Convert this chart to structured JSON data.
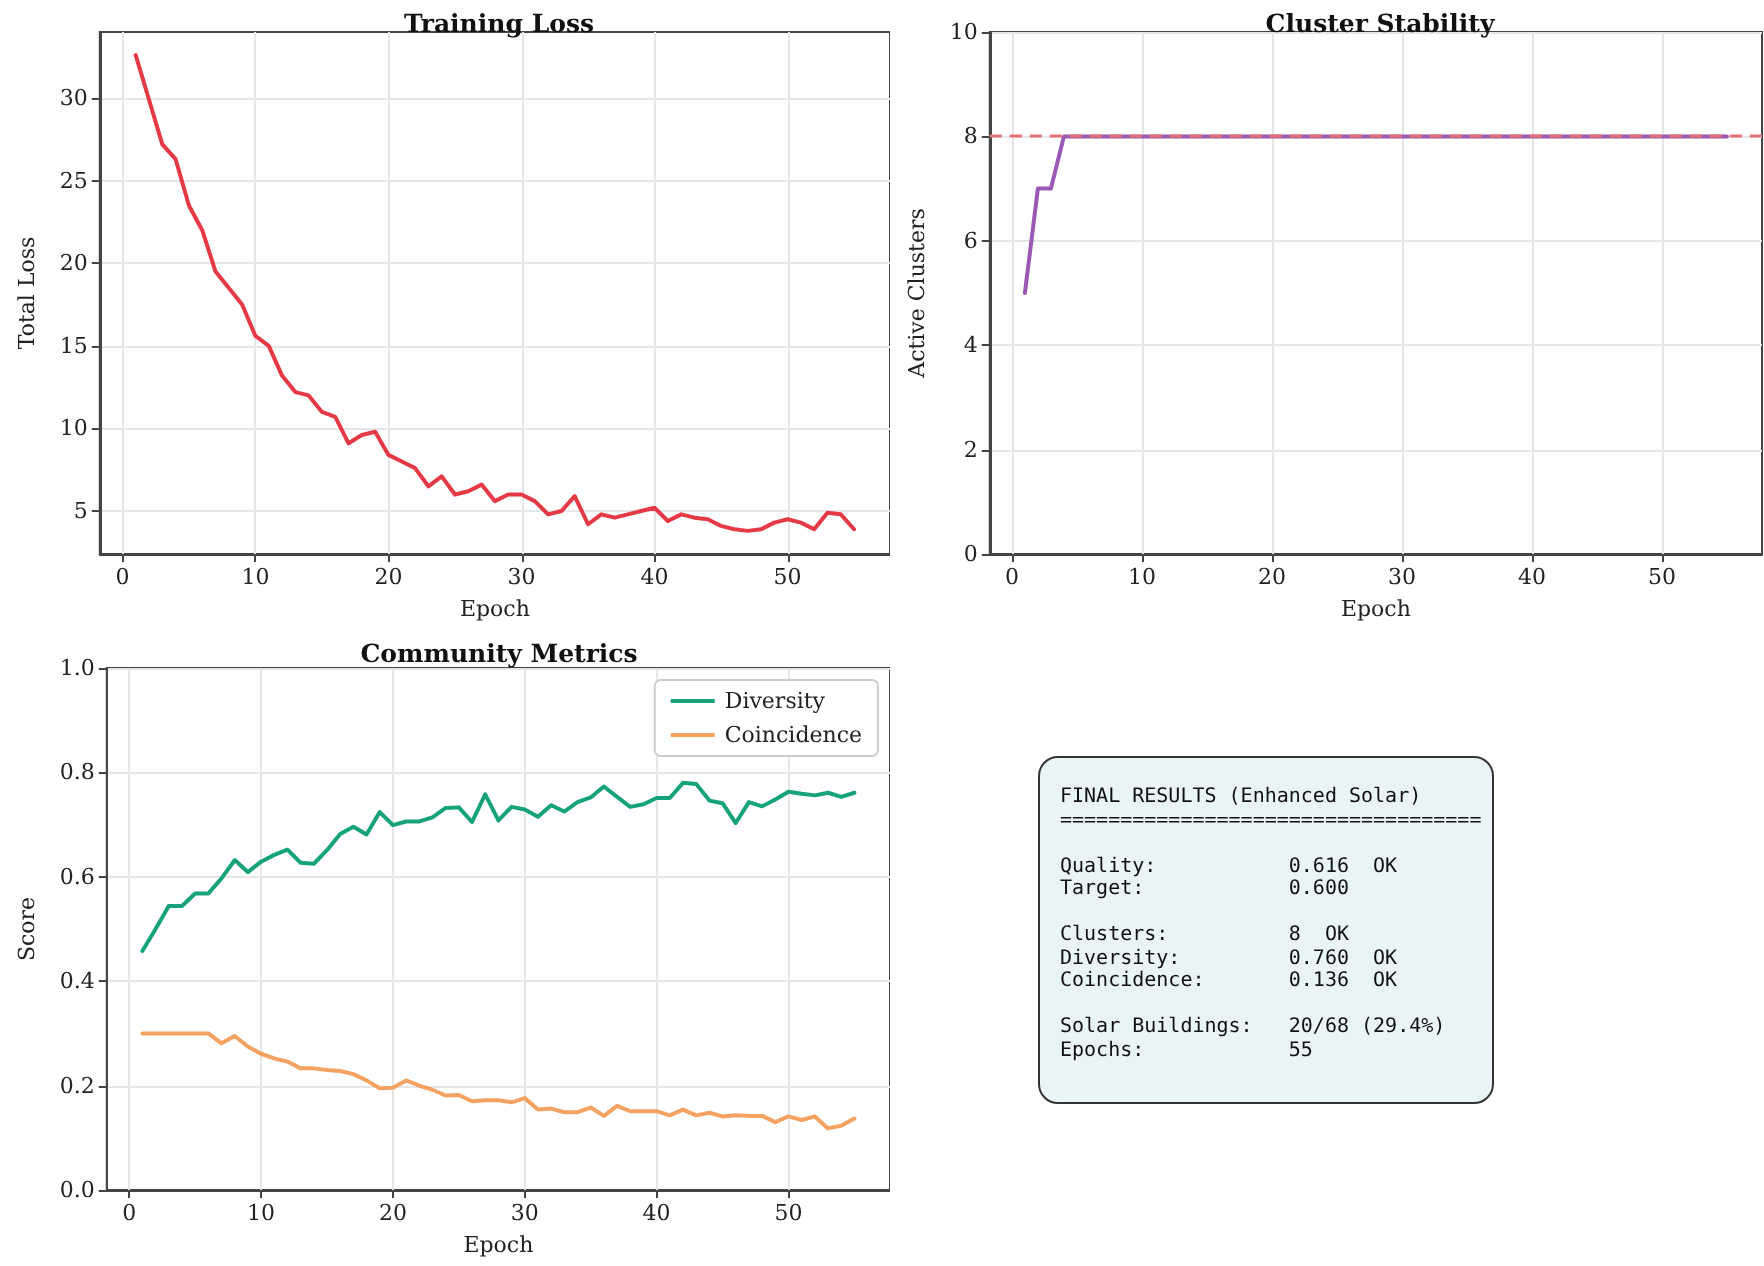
{
  "chart_data": [
    {
      "type": "line",
      "title": "Training Loss",
      "xlabel": "Epoch",
      "ylabel": "Total Loss",
      "x": [
        1,
        2,
        3,
        4,
        5,
        6,
        7,
        8,
        9,
        10,
        11,
        12,
        13,
        14,
        15,
        16,
        17,
        18,
        19,
        20,
        21,
        22,
        23,
        24,
        25,
        26,
        27,
        28,
        29,
        30,
        31,
        32,
        33,
        34,
        35,
        36,
        37,
        38,
        39,
        40,
        41,
        42,
        43,
        44,
        45,
        46,
        47,
        48,
        49,
        50,
        51,
        52,
        53,
        54,
        55
      ],
      "series": [
        {
          "color": "#e63946",
          "values": [
            32.6,
            29.9,
            27.2,
            26.3,
            23.5,
            22.0,
            19.5,
            18.5,
            17.5,
            15.6,
            15.0,
            13.2,
            12.2,
            12.0,
            11.0,
            10.7,
            9.1,
            9.6,
            9.8,
            8.4,
            8.0,
            7.6,
            6.5,
            7.1,
            6.0,
            6.2,
            6.6,
            5.6,
            6.0,
            6.0,
            5.6,
            4.8,
            5.0,
            5.9,
            4.2,
            4.8,
            4.6,
            4.8,
            5.0,
            5.2,
            4.4,
            4.8,
            4.6,
            4.5,
            4.1,
            3.9,
            3.8,
            3.9,
            4.3,
            4.5,
            4.3,
            3.9,
            4.9,
            4.8,
            3.9
          ]
        }
      ],
      "xlim": [
        -1.7,
        57.7
      ],
      "xticks": [
        0,
        10,
        20,
        30,
        40,
        50
      ],
      "ylim": [
        2.4,
        34.0
      ],
      "yticks": [
        5,
        10,
        15,
        20,
        25,
        30
      ],
      "grid": true,
      "legend": false,
      "marker": "none",
      "line_style": "solid"
    },
    {
      "type": "line",
      "title": "Cluster Stability",
      "xlabel": "Epoch",
      "ylabel": "Active Clusters",
      "x": [
        1,
        2,
        3,
        4,
        5,
        6,
        7,
        8,
        9,
        10,
        11,
        12,
        13,
        14,
        15,
        16,
        17,
        18,
        19,
        20,
        21,
        22,
        23,
        24,
        25,
        26,
        27,
        28,
        29,
        30,
        31,
        32,
        33,
        34,
        35,
        36,
        37,
        38,
        39,
        40,
        41,
        42,
        43,
        44,
        45,
        46,
        47,
        48,
        49,
        50,
        51,
        52,
        53,
        54,
        55
      ],
      "series": [
        {
          "color": "#9b59b6",
          "values": [
            5,
            7,
            7,
            8,
            8,
            8,
            8,
            8,
            8,
            8,
            8,
            8,
            8,
            8,
            8,
            8,
            8,
            8,
            8,
            8,
            8,
            8,
            8,
            8,
            8,
            8,
            8,
            8,
            8,
            8,
            8,
            8,
            8,
            8,
            8,
            8,
            8,
            8,
            8,
            8,
            8,
            8,
            8,
            8,
            8,
            8,
            8,
            8,
            8,
            8,
            8,
            8,
            8,
            8,
            8
          ]
        }
      ],
      "ref_lines": [
        {
          "axis": "y",
          "value": 8,
          "color": "#e57373",
          "line_style": "dashed"
        }
      ],
      "xlim": [
        -1.7,
        57.7
      ],
      "xticks": [
        0,
        10,
        20,
        30,
        40,
        50
      ],
      "ylim": [
        0,
        10
      ],
      "yticks": [
        0,
        2,
        4,
        6,
        8,
        10
      ],
      "grid": true,
      "legend": false,
      "marker": "none",
      "line_style": "solid"
    },
    {
      "type": "line",
      "title": "Community Metrics",
      "xlabel": "Epoch",
      "ylabel": "Score",
      "x": [
        1,
        2,
        3,
        4,
        5,
        6,
        7,
        8,
        9,
        10,
        11,
        12,
        13,
        14,
        15,
        16,
        17,
        18,
        19,
        20,
        21,
        22,
        23,
        24,
        25,
        26,
        27,
        28,
        29,
        30,
        31,
        32,
        33,
        34,
        35,
        36,
        37,
        38,
        39,
        40,
        41,
        42,
        43,
        44,
        45,
        46,
        47,
        48,
        49,
        50,
        51,
        52,
        53,
        54,
        55
      ],
      "series": [
        {
          "name": "Diversity",
          "color": "#17a37a",
          "values": [
            0.458,
            0.5,
            0.544,
            0.544,
            0.568,
            0.568,
            0.597,
            0.632,
            0.609,
            0.629,
            0.642,
            0.652,
            0.627,
            0.625,
            0.651,
            0.682,
            0.696,
            0.681,
            0.724,
            0.699,
            0.706,
            0.706,
            0.714,
            0.732,
            0.733,
            0.705,
            0.758,
            0.708,
            0.734,
            0.729,
            0.715,
            0.737,
            0.725,
            0.743,
            0.752,
            0.773,
            0.753,
            0.734,
            0.739,
            0.751,
            0.751,
            0.78,
            0.778,
            0.746,
            0.741,
            0.703,
            0.743,
            0.735,
            0.748,
            0.763,
            0.759,
            0.756,
            0.761,
            0.753,
            0.761
          ]
        },
        {
          "name": "Coincidence",
          "color": "#f4a261",
          "values": [
            0.3,
            0.3,
            0.3,
            0.3,
            0.3,
            0.3,
            0.281,
            0.295,
            0.275,
            0.261,
            0.252,
            0.246,
            0.233,
            0.233,
            0.23,
            0.228,
            0.222,
            0.21,
            0.195,
            0.196,
            0.21,
            0.2,
            0.192,
            0.181,
            0.182,
            0.17,
            0.172,
            0.172,
            0.168,
            0.176,
            0.154,
            0.156,
            0.149,
            0.149,
            0.158,
            0.142,
            0.161,
            0.151,
            0.151,
            0.151,
            0.143,
            0.154,
            0.143,
            0.148,
            0.141,
            0.143,
            0.142,
            0.142,
            0.13,
            0.141,
            0.134,
            0.141,
            0.118,
            0.123,
            0.137
          ]
        }
      ],
      "xlim": [
        -1.7,
        57.7
      ],
      "xticks": [
        0,
        10,
        20,
        30,
        40,
        50
      ],
      "ylim": [
        0,
        1
      ],
      "yticks": [
        {
          "value": 0,
          "label": "0.0"
        },
        {
          "value": 0.2,
          "label": "0.2"
        },
        {
          "value": 0.4,
          "label": "0.4"
        },
        {
          "value": 0.6,
          "label": "0.6"
        },
        {
          "value": 0.8,
          "label": "0.8"
        },
        {
          "value": 1,
          "label": "1.0"
        }
      ],
      "grid": true,
      "legend": "top right",
      "marker": "none",
      "line_style": "solid"
    },
    {
      "type": "other",
      "title": "FINAL RESULTS (Enhanced Solar)",
      "annotations": [
        "===================================",
        "Quality:           0.616  OK\nTarget:            0.600",
        "Clusters:          8  OK\nDiversity:         0.760  OK\nCoincidence:       0.136  OK",
        "Solar Buildings:   20/68 (29.4%)\nEpochs:            55"
      ]
    }
  ]
}
